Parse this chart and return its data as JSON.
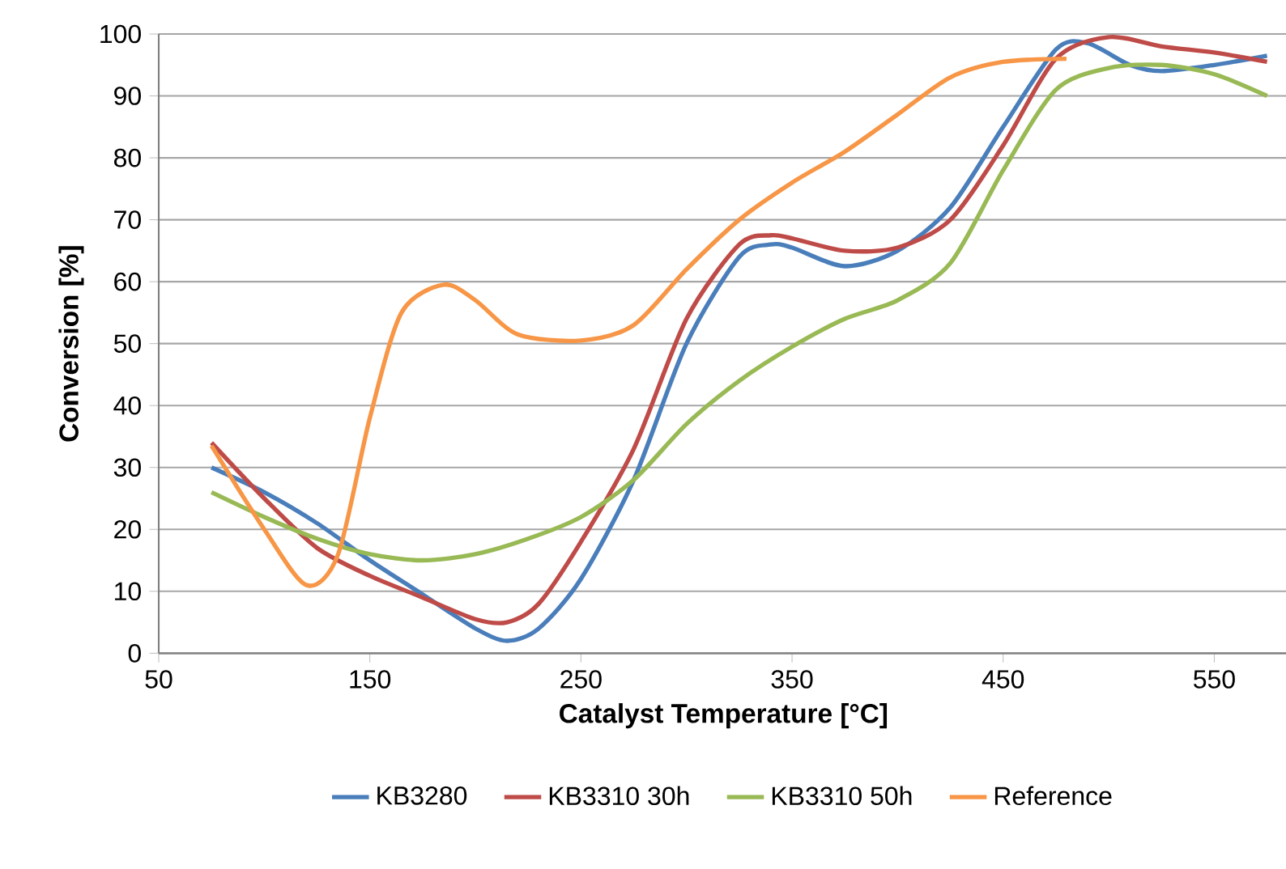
{
  "chart_data": {
    "type": "line",
    "xlabel": "Catalyst Temperature [°C]",
    "ylabel": "Conversion [%]",
    "xlim": [
      50,
      585
    ],
    "xticks": [
      50,
      150,
      250,
      350,
      450,
      550
    ],
    "ylim": [
      0,
      100
    ],
    "yticks": [
      0,
      10,
      20,
      30,
      40,
      50,
      60,
      70,
      80,
      90,
      100
    ],
    "grid": "y",
    "legend": "bottom",
    "marker": "none",
    "line_style": "solid",
    "series": [
      {
        "name": "KB3280",
        "color": "#4a7ebb",
        "x": [
          75,
          100,
          125,
          150,
          175,
          200,
          215,
          230,
          250,
          275,
          300,
          325,
          340,
          350,
          375,
          400,
          425,
          450,
          475,
          490,
          510,
          525,
          550,
          575
        ],
        "values": [
          30,
          26,
          21,
          15,
          9.5,
          4,
          2,
          4,
          12,
          28,
          50,
          64,
          66,
          65.5,
          62.5,
          65,
          72,
          85,
          97.5,
          98.5,
          95,
          94,
          95,
          96.5
        ]
      },
      {
        "name": "KB3310 30h",
        "color": "#be4b48",
        "x": [
          75,
          100,
          125,
          150,
          175,
          200,
          215,
          230,
          250,
          275,
          300,
          325,
          340,
          350,
          375,
          400,
          425,
          450,
          475,
          500,
          525,
          550,
          575
        ],
        "values": [
          34,
          25,
          17,
          12.5,
          9,
          5.5,
          5,
          8,
          18,
          33,
          54,
          66,
          67.5,
          67,
          65,
          65.5,
          70,
          82,
          96,
          99.5,
          98,
          97,
          95.5
        ]
      },
      {
        "name": "KB3310 50h",
        "color": "#98b954",
        "x": [
          75,
          100,
          125,
          150,
          175,
          200,
          225,
          250,
          275,
          300,
          325,
          350,
          375,
          400,
          425,
          450,
          475,
          500,
          525,
          550,
          575
        ],
        "values": [
          26,
          22,
          18.5,
          16,
          15,
          16,
          18.5,
          22,
          28,
          37,
          44,
          49.5,
          54,
          57,
          63,
          78,
          91,
          94.5,
          95,
          93.5,
          90
        ]
      },
      {
        "name": "Reference",
        "color": "#f79646",
        "x": [
          75,
          100,
          120,
          135,
          150,
          165,
          185,
          200,
          220,
          250,
          275,
          300,
          325,
          350,
          375,
          400,
          425,
          450,
          480
        ],
        "values": [
          33.5,
          20,
          11,
          16,
          38,
          55,
          59.5,
          57,
          51.5,
          50.5,
          53,
          62,
          70,
          76,
          81,
          87,
          93,
          95.5,
          96
        ]
      }
    ]
  }
}
